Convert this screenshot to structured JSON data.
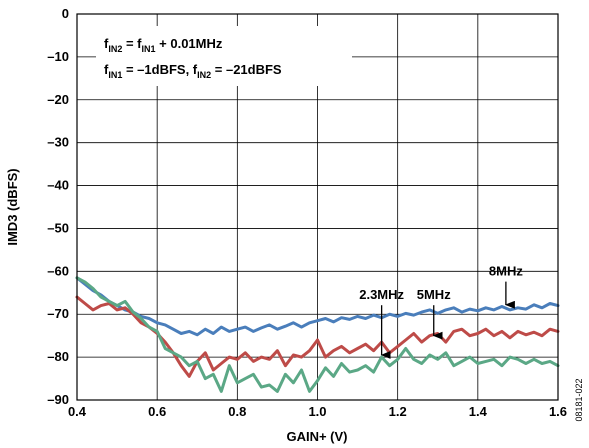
{
  "chart_data": {
    "type": "line",
    "xlabel": "GAIN+ (V)",
    "ylabel": "IMD3 (dBFS)",
    "xlim": [
      0.4,
      1.6
    ],
    "ylim": [
      -90,
      0
    ],
    "x_ticks": [
      0.4,
      0.6,
      0.8,
      1.0,
      1.2,
      1.4,
      1.6
    ],
    "x_tick_labels": [
      "0.4",
      "0.6",
      "0.8",
      "1.0",
      "1.2",
      "1.4",
      "1.6"
    ],
    "y_ticks": [
      0,
      -10,
      -20,
      -30,
      -40,
      -50,
      -60,
      -70,
      -80,
      -90
    ],
    "y_tick_labels": [
      "0",
      "–10",
      "–20",
      "–30",
      "–40",
      "–50",
      "–60",
      "–70",
      "–80",
      "–90"
    ],
    "grid": true,
    "legend_box": {
      "line1": {
        "f1": "f",
        "s1": "IN2",
        "mid": " = f",
        "s2": "IN1",
        "rest": " + 0.01MHz"
      },
      "line2": {
        "f1": "f",
        "s1": "IN1",
        "mid": " = –1dBFS, f",
        "s2": "IN2",
        "rest": " = –21dBFS"
      }
    },
    "series": [
      {
        "name": "8MHz",
        "color": "#4a7ebb",
        "x": [
          0.4,
          0.42,
          0.44,
          0.46,
          0.48,
          0.5,
          0.52,
          0.54,
          0.56,
          0.58,
          0.6,
          0.62,
          0.64,
          0.66,
          0.68,
          0.7,
          0.72,
          0.74,
          0.76,
          0.78,
          0.8,
          0.82,
          0.84,
          0.86,
          0.88,
          0.9,
          0.92,
          0.94,
          0.96,
          0.98,
          1.0,
          1.02,
          1.04,
          1.06,
          1.08,
          1.1,
          1.12,
          1.14,
          1.16,
          1.18,
          1.2,
          1.22,
          1.24,
          1.26,
          1.28,
          1.3,
          1.32,
          1.34,
          1.36,
          1.38,
          1.4,
          1.42,
          1.44,
          1.46,
          1.48,
          1.5,
          1.52,
          1.54,
          1.56,
          1.58,
          1.6
        ],
        "y": [
          -61.5,
          -63,
          -64.5,
          -65.5,
          -67,
          -68,
          -69,
          -69.5,
          -70.5,
          -71,
          -72,
          -72.5,
          -73.5,
          -74.5,
          -74,
          -74.8,
          -73.5,
          -74.5,
          -73,
          -74,
          -73.5,
          -73,
          -74,
          -73.2,
          -72.5,
          -73.5,
          -72.8,
          -72,
          -73,
          -72,
          -71.5,
          -71,
          -71.8,
          -70.8,
          -71.2,
          -70.5,
          -71,
          -70.2,
          -70.8,
          -70,
          -70.5,
          -69.8,
          -70.2,
          -69.5,
          -69,
          -69.8,
          -69,
          -68.5,
          -69.5,
          -68.8,
          -69.2,
          -68.5,
          -69,
          -68.2,
          -69,
          -68.5,
          -68.8,
          -67.8,
          -68.5,
          -67.5,
          -68
        ]
      },
      {
        "name": "5MHz",
        "color": "#be4b48",
        "x": [
          0.4,
          0.42,
          0.44,
          0.46,
          0.48,
          0.5,
          0.52,
          0.54,
          0.56,
          0.58,
          0.6,
          0.62,
          0.64,
          0.66,
          0.68,
          0.7,
          0.72,
          0.74,
          0.76,
          0.78,
          0.8,
          0.82,
          0.84,
          0.86,
          0.88,
          0.9,
          0.92,
          0.94,
          0.96,
          0.98,
          1.0,
          1.02,
          1.04,
          1.06,
          1.08,
          1.1,
          1.12,
          1.14,
          1.16,
          1.18,
          1.2,
          1.22,
          1.24,
          1.26,
          1.28,
          1.3,
          1.32,
          1.34,
          1.36,
          1.38,
          1.4,
          1.42,
          1.44,
          1.46,
          1.48,
          1.5,
          1.52,
          1.54,
          1.56,
          1.58,
          1.6
        ],
        "y": [
          -66,
          -67.5,
          -69,
          -68,
          -67.5,
          -69,
          -68.5,
          -70,
          -72,
          -73,
          -74.5,
          -76.5,
          -79,
          -82,
          -84.5,
          -81,
          -79,
          -83,
          -81.5,
          -80,
          -80.5,
          -79,
          -81,
          -80,
          -80.5,
          -78.5,
          -82,
          -79.5,
          -80,
          -78.5,
          -76,
          -80,
          -78.5,
          -77.5,
          -79,
          -78,
          -77,
          -78.5,
          -76.5,
          -79,
          -77.5,
          -76,
          -74.5,
          -76.5,
          -75,
          -74.5,
          -76.5,
          -74,
          -73.5,
          -75,
          -74.5,
          -73.5,
          -75,
          -74,
          -75.5,
          -74,
          -74.8,
          -74.2,
          -75,
          -73.5,
          -74
        ]
      },
      {
        "name": "2.3MHz",
        "color": "#5ba886",
        "x": [
          0.4,
          0.42,
          0.44,
          0.46,
          0.48,
          0.5,
          0.52,
          0.54,
          0.56,
          0.58,
          0.6,
          0.62,
          0.64,
          0.66,
          0.68,
          0.7,
          0.72,
          0.74,
          0.76,
          0.78,
          0.8,
          0.82,
          0.84,
          0.86,
          0.88,
          0.9,
          0.92,
          0.94,
          0.96,
          0.98,
          1.0,
          1.02,
          1.04,
          1.06,
          1.08,
          1.1,
          1.12,
          1.14,
          1.16,
          1.18,
          1.2,
          1.22,
          1.24,
          1.26,
          1.28,
          1.3,
          1.32,
          1.34,
          1.36,
          1.38,
          1.4,
          1.42,
          1.44,
          1.46,
          1.48,
          1.5,
          1.52,
          1.54,
          1.56,
          1.58,
          1.6
        ],
        "y": [
          -61.5,
          -62.5,
          -64,
          -66,
          -67,
          -68,
          -67,
          -69.5,
          -71,
          -73,
          -74,
          -78,
          -79,
          -80,
          -82,
          -81,
          -85,
          -84,
          -88,
          -82,
          -86,
          -85,
          -84,
          -87,
          -86.5,
          -88,
          -84,
          -86,
          -83,
          -88,
          -85.5,
          -82.5,
          -84.5,
          -81.5,
          -83.5,
          -83,
          -82,
          -83.5,
          -80,
          -82,
          -80.5,
          -78,
          -80.5,
          -81.5,
          -79.5,
          -80.5,
          -79,
          -82,
          -81,
          -80,
          -81.5,
          -81,
          -80.5,
          -82,
          -80,
          -80.5,
          -81.5,
          -80.5,
          -81.5,
          -81,
          -82
        ]
      }
    ],
    "annotations": [
      {
        "text": "2.3MHz",
        "x": 1.16,
        "y": -66.5,
        "arrow_to": [
          1.16,
          -79.5
        ]
      },
      {
        "text": "5MHz",
        "x": 1.29,
        "y": -66.5,
        "arrow_to": [
          1.29,
          -75
        ]
      },
      {
        "text": "8MHz",
        "x": 1.47,
        "y": -61,
        "arrow_to": [
          1.47,
          -67.8
        ]
      }
    ],
    "figure_id": "08181-022"
  }
}
